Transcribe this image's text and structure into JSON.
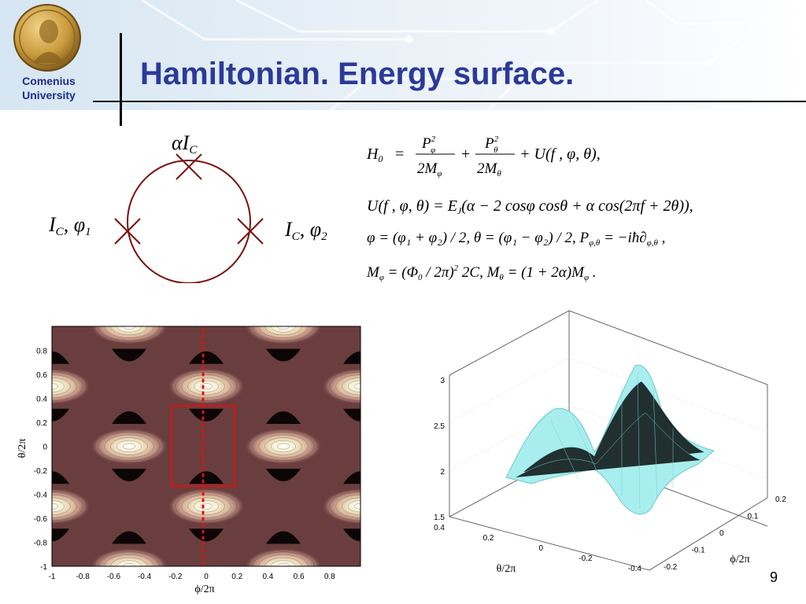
{
  "header": {
    "title": "Hamiltonian. Energy surface.",
    "university_line1": "Comenius",
    "university_line2": "University"
  },
  "colors": {
    "title": "#2b3a9a",
    "university": "#1e2d8c",
    "circuit": "#7a1010",
    "surface": "#a8eeee",
    "contour_marker": "#e01010"
  },
  "icons": {
    "logo": "medal-portrait-icon"
  },
  "circuit": {
    "top_label": "αI",
    "top_sub": "C",
    "left_label": "I",
    "left_sub": "C",
    "left_phase": ", φ",
    "left_phase_sub": "1",
    "right_label": "I",
    "right_sub": "C",
    "right_phase": ", φ",
    "right_phase_sub": "2"
  },
  "equations": {
    "eq1": {
      "lhs": "H",
      "lhs_sub": "0",
      "eq": "=",
      "frac1_num": "P",
      "frac1_num_sup": "2",
      "frac1_num_sub": "φ",
      "frac1_den": "2M",
      "frac1_den_sub": "φ",
      "plus": "+",
      "frac2_num": "P",
      "frac2_num_sup": "2",
      "frac2_num_sub": "θ",
      "frac2_den": "2M",
      "frac2_den_sub": "θ",
      "tail": "+ U(f , φ, θ),"
    },
    "eq2": {
      "lhs": "U(f , φ, θ) = E",
      "lhs_sub": "J",
      "rhs": "(α − 2 cosφ cosθ + α cos(2πf + 2θ)),"
    },
    "eq3": {
      "text": "φ = (φ₁ + φ₂) / 2, θ = (φ₁ − φ₂) / 2, P",
      "p_sub": "φ,θ",
      "text2": " = −iħ∂",
      "d_sub": "φ,θ",
      "end": " ,"
    },
    "eq4": {
      "text": "M",
      "m_sub": "φ",
      "text2": " = (Φ",
      "phi_sub": "0",
      "text3": " / 2π)",
      "sup": "2",
      "text4": " 2C, M",
      "m2_sub": "θ",
      "text5": " = (1 + 2α)M",
      "m3_sub": "φ",
      "end": " ."
    }
  },
  "contour_plot": {
    "xlabel": "ϕ/2π",
    "ylabel": "θ/2π",
    "xlim": [
      -1,
      1
    ],
    "ylim": [
      -1,
      1
    ],
    "x_tick_labels": [
      "-1",
      "-0.8",
      "-0.6",
      "-0.4",
      "-0.2",
      "0",
      "0.2",
      "0.4",
      "0.6",
      "0.8"
    ],
    "y_tick_labels": [
      "-1",
      "-0.8",
      "-0.6",
      "-0.4",
      "-0.2",
      "0",
      "0.2",
      "0.4",
      "0.6",
      "0.8"
    ]
  },
  "surface_plot": {
    "xlabel": "θ/2π",
    "ylabel": "ϕ/2π",
    "z_tick_labels": [
      "1.5",
      "2",
      "2.5",
      "3"
    ],
    "theta_tick_labels": [
      "0.4",
      "0.2",
      "0",
      "-0.2",
      "-0.4"
    ],
    "phi_tick_labels": [
      "0.2",
      "0.1",
      "0",
      "-0.1",
      "-0.2"
    ]
  },
  "footer": {
    "slide_number": "9"
  }
}
